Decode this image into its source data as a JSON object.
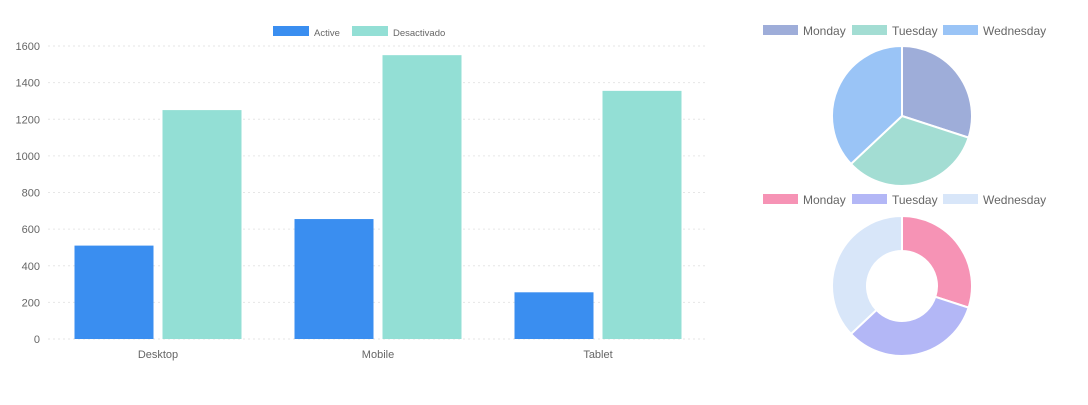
{
  "chart_data": [
    {
      "type": "bar",
      "categories": [
        "Desktop",
        "Mobile",
        "Tablet"
      ],
      "series": [
        {
          "name": "Active",
          "values": [
            510,
            655,
            255
          ],
          "color": "#3a8ef0"
        },
        {
          "name": "Desactivado",
          "values": [
            1250,
            1550,
            1355
          ],
          "color": "#93dfd5"
        }
      ],
      "ylim": [
        0,
        1600
      ],
      "yticks": [
        0,
        200,
        400,
        600,
        800,
        1000,
        1200,
        1400,
        1600
      ],
      "grid": true,
      "legend": "top-center"
    },
    {
      "type": "pie",
      "labels": [
        "Monday",
        "Tuesday",
        "Wednesday"
      ],
      "values": [
        30,
        33,
        37
      ],
      "colors": [
        "#9eadd9",
        "#a3ddd3",
        "#9ac4f6"
      ],
      "legend": "top"
    },
    {
      "type": "pie",
      "variant": "doughnut",
      "labels": [
        "Monday",
        "Tuesday",
        "Wednesday"
      ],
      "values": [
        30,
        33,
        37
      ],
      "colors": [
        "#f693b5",
        "#b3b7f6",
        "#d8e6f9"
      ],
      "legend": "top"
    }
  ]
}
